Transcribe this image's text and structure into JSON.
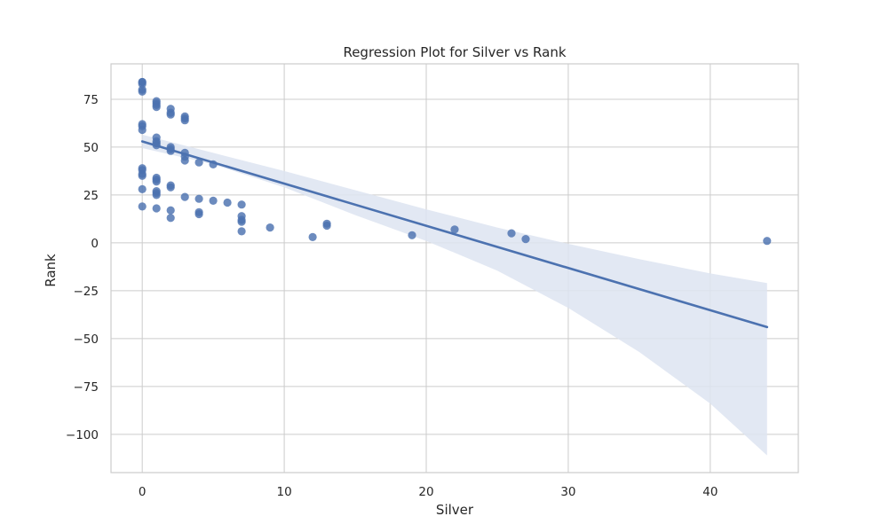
{
  "chart_data": {
    "type": "scatter",
    "title": "Regression Plot for Silver vs Rank",
    "xlabel": "Silver",
    "ylabel": "Rank",
    "xlim": [
      -2.2,
      46.2
    ],
    "ylim": [
      -120,
      93.5
    ],
    "xticks": [
      0,
      10,
      20,
      30,
      40
    ],
    "yticks": [
      75,
      50,
      25,
      0,
      -25,
      -50,
      -75,
      -100
    ],
    "grid": true,
    "colors": {
      "points": "#4c72b0",
      "line": "#4c72b0",
      "band": "#dde4f1",
      "grid": "#cccccc",
      "frame": "#cccccc"
    },
    "points": [
      {
        "x": 0,
        "y": 84
      },
      {
        "x": 0,
        "y": 84
      },
      {
        "x": 0,
        "y": 83
      },
      {
        "x": 0,
        "y": 80
      },
      {
        "x": 0,
        "y": 79
      },
      {
        "x": 0,
        "y": 62
      },
      {
        "x": 0,
        "y": 61
      },
      {
        "x": 0,
        "y": 59
      },
      {
        "x": 0,
        "y": 39
      },
      {
        "x": 0,
        "y": 38
      },
      {
        "x": 0,
        "y": 36
      },
      {
        "x": 0,
        "y": 35
      },
      {
        "x": 0,
        "y": 28
      },
      {
        "x": 0,
        "y": 19
      },
      {
        "x": 1,
        "y": 74
      },
      {
        "x": 1,
        "y": 73
      },
      {
        "x": 1,
        "y": 72
      },
      {
        "x": 1,
        "y": 71
      },
      {
        "x": 1,
        "y": 55
      },
      {
        "x": 1,
        "y": 53
      },
      {
        "x": 1,
        "y": 52
      },
      {
        "x": 1,
        "y": 51
      },
      {
        "x": 1,
        "y": 34
      },
      {
        "x": 1,
        "y": 33
      },
      {
        "x": 1,
        "y": 32
      },
      {
        "x": 1,
        "y": 27
      },
      {
        "x": 1,
        "y": 26
      },
      {
        "x": 1,
        "y": 25
      },
      {
        "x": 1,
        "y": 18
      },
      {
        "x": 2,
        "y": 70
      },
      {
        "x": 2,
        "y": 68
      },
      {
        "x": 2,
        "y": 67
      },
      {
        "x": 2,
        "y": 50
      },
      {
        "x": 2,
        "y": 49
      },
      {
        "x": 2,
        "y": 48
      },
      {
        "x": 2,
        "y": 30
      },
      {
        "x": 2,
        "y": 29
      },
      {
        "x": 2,
        "y": 17
      },
      {
        "x": 2,
        "y": 13
      },
      {
        "x": 3,
        "y": 66
      },
      {
        "x": 3,
        "y": 65
      },
      {
        "x": 3,
        "y": 64
      },
      {
        "x": 3,
        "y": 47
      },
      {
        "x": 3,
        "y": 45
      },
      {
        "x": 3,
        "y": 43
      },
      {
        "x": 3,
        "y": 24
      },
      {
        "x": 4,
        "y": 42
      },
      {
        "x": 4,
        "y": 23
      },
      {
        "x": 4,
        "y": 16
      },
      {
        "x": 4,
        "y": 15
      },
      {
        "x": 5,
        "y": 41
      },
      {
        "x": 5,
        "y": 22
      },
      {
        "x": 6,
        "y": 21
      },
      {
        "x": 7,
        "y": 20
      },
      {
        "x": 7,
        "y": 14
      },
      {
        "x": 7,
        "y": 12
      },
      {
        "x": 7,
        "y": 11
      },
      {
        "x": 7,
        "y": 6
      },
      {
        "x": 9,
        "y": 8
      },
      {
        "x": 12,
        "y": 3
      },
      {
        "x": 13,
        "y": 10
      },
      {
        "x": 13,
        "y": 9
      },
      {
        "x": 19,
        "y": 4
      },
      {
        "x": 22,
        "y": 7
      },
      {
        "x": 26,
        "y": 5
      },
      {
        "x": 27,
        "y": 2
      },
      {
        "x": 44,
        "y": 1
      }
    ],
    "regression_line": {
      "x_start": 0,
      "y_start": 53,
      "x_end": 44,
      "y_end": -44
    },
    "confidence_band": {
      "x": [
        0,
        5,
        10,
        15,
        20,
        25,
        30,
        35,
        40,
        44
      ],
      "upper": [
        56.5,
        47,
        37.5,
        27.5,
        17.5,
        8,
        -0.5,
        -8.5,
        -16,
        -21
      ],
      "lower": [
        49.5,
        41,
        29,
        14.5,
        1,
        -14.5,
        -34,
        -57,
        -84,
        -111
      ]
    }
  }
}
